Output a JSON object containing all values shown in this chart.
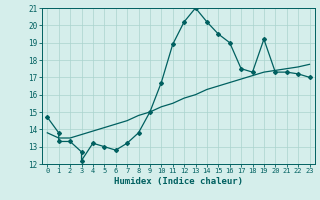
{
  "title": "",
  "xlabel": "Humidex (Indice chaleur)",
  "bg_color": "#d5eeeb",
  "grid_color": "#aad4ce",
  "line_color": "#006060",
  "xlim": [
    -0.5,
    23.5
  ],
  "ylim": [
    12,
    21
  ],
  "xticks": [
    0,
    1,
    2,
    3,
    4,
    5,
    6,
    7,
    8,
    9,
    10,
    11,
    12,
    13,
    14,
    15,
    16,
    17,
    18,
    19,
    20,
    21,
    22,
    23
  ],
  "yticks": [
    12,
    13,
    14,
    15,
    16,
    17,
    18,
    19,
    20,
    21
  ],
  "curve1_x": [
    0,
    1,
    1,
    2,
    3,
    3,
    4,
    5,
    6,
    7,
    8,
    9,
    10,
    11,
    12,
    13,
    14,
    15,
    16,
    17,
    18,
    19,
    20,
    21,
    22,
    23
  ],
  "curve1_y": [
    14.7,
    13.8,
    13.3,
    13.3,
    12.7,
    12.2,
    13.2,
    13.0,
    12.8,
    13.2,
    13.8,
    15.0,
    16.7,
    18.9,
    20.2,
    21.0,
    20.2,
    19.5,
    19.0,
    17.5,
    17.3,
    19.2,
    17.3,
    17.3,
    17.2,
    17.0
  ],
  "curve2_x": [
    0,
    1,
    2,
    3,
    4,
    5,
    6,
    7,
    8,
    9,
    10,
    11,
    12,
    13,
    14,
    15,
    16,
    17,
    18,
    19,
    20,
    21,
    22,
    23
  ],
  "curve2_y": [
    13.8,
    13.5,
    13.5,
    13.7,
    13.9,
    14.1,
    14.3,
    14.5,
    14.8,
    15.0,
    15.3,
    15.5,
    15.8,
    16.0,
    16.3,
    16.5,
    16.7,
    16.9,
    17.1,
    17.3,
    17.4,
    17.5,
    17.6,
    17.75
  ],
  "marker_x": [
    0,
    1,
    3,
    4,
    6,
    7,
    9,
    10,
    11,
    12,
    13,
    14,
    15,
    16,
    17,
    18,
    19,
    20,
    21,
    22,
    23
  ],
  "marker_y": [
    14.7,
    13.8,
    12.7,
    13.2,
    12.8,
    13.2,
    15.0,
    16.7,
    18.9,
    20.2,
    21.0,
    20.2,
    19.5,
    19.0,
    17.5,
    17.3,
    19.2,
    17.3,
    17.3,
    17.2,
    17.0
  ]
}
